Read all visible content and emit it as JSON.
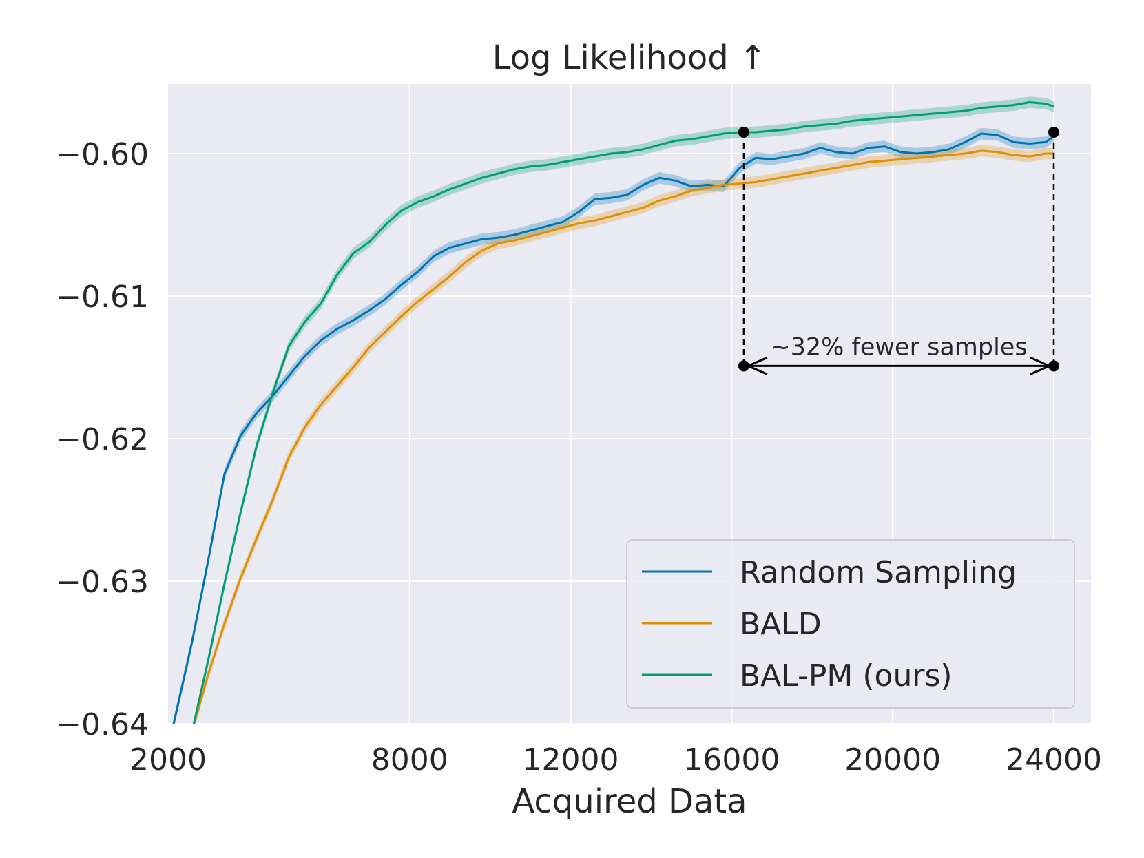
{
  "chart_data": {
    "type": "line",
    "title": "Log Likelihood ↑",
    "xlabel": "Acquired Data",
    "ylabel": "",
    "xlim": [
      2000,
      25000
    ],
    "ylim": [
      -0.64,
      -0.595
    ],
    "xticks": [
      2000,
      8000,
      12000,
      16000,
      20000,
      24000
    ],
    "xtick_labels": [
      "2000",
      "8000",
      "12000",
      "16000",
      "20000",
      "24000"
    ],
    "yticks": [
      -0.6,
      -0.61,
      -0.62,
      -0.63,
      -0.64
    ],
    "ytick_labels": [
      "−0.60",
      "−0.61",
      "−0.62",
      "−0.63",
      "−0.64"
    ],
    "grid": true,
    "legend_position": "lower-right",
    "series": [
      {
        "name": "Random Sampling",
        "color": "#0173b2",
        "x": [
          2100,
          2600,
          3000,
          3400,
          3800,
          4200,
          4600,
          5000,
          5400,
          5800,
          6200,
          6600,
          7000,
          7400,
          7800,
          8200,
          8600,
          9000,
          9400,
          9800,
          10200,
          10600,
          11000,
          11400,
          11800,
          12200,
          12600,
          13000,
          13400,
          13800,
          14200,
          14600,
          15000,
          15400,
          15800,
          16200,
          16600,
          17000,
          17400,
          17800,
          18200,
          18600,
          19000,
          19400,
          19800,
          20200,
          20600,
          21000,
          21400,
          21800,
          22200,
          22600,
          23000,
          23400,
          23800,
          24000
        ],
        "y": [
          -0.6405,
          -0.6342,
          -0.6285,
          -0.6225,
          -0.6198,
          -0.6182,
          -0.617,
          -0.6156,
          -0.6142,
          -0.6131,
          -0.6123,
          -0.6117,
          -0.611,
          -0.6102,
          -0.6092,
          -0.6083,
          -0.6072,
          -0.6066,
          -0.6063,
          -0.606,
          -0.6059,
          -0.6057,
          -0.6054,
          -0.6051,
          -0.6048,
          -0.6041,
          -0.6032,
          -0.6031,
          -0.6029,
          -0.6022,
          -0.6017,
          -0.6019,
          -0.6023,
          -0.6022,
          -0.6023,
          -0.601,
          -0.6003,
          -0.6004,
          -0.6002,
          -0.6,
          -0.5996,
          -0.5999,
          -0.6,
          -0.5996,
          -0.5995,
          -0.5999,
          -0.6,
          -0.5999,
          -0.5997,
          -0.5992,
          -0.5986,
          -0.5987,
          -0.5992,
          -0.5993,
          -0.5992,
          -0.5988
        ]
      },
      {
        "name": "BALD",
        "color": "#de8f05",
        "x": [
          2600,
          3000,
          3400,
          3800,
          4200,
          4600,
          5000,
          5400,
          5800,
          6200,
          6600,
          7000,
          7400,
          7800,
          8200,
          8600,
          9000,
          9400,
          9800,
          10200,
          10600,
          11000,
          11400,
          11800,
          12200,
          12600,
          13000,
          13400,
          13800,
          14200,
          14600,
          15000,
          15400,
          15800,
          16200,
          16600,
          17000,
          17400,
          17800,
          18200,
          18600,
          19000,
          19400,
          19800,
          20200,
          20600,
          21000,
          21400,
          21800,
          22200,
          22600,
          23000,
          23400,
          23800,
          24000
        ],
        "y": [
          -0.6405,
          -0.6365,
          -0.633,
          -0.6298,
          -0.627,
          -0.6243,
          -0.6213,
          -0.6192,
          -0.6176,
          -0.6163,
          -0.615,
          -0.6136,
          -0.6125,
          -0.6114,
          -0.6104,
          -0.6095,
          -0.6086,
          -0.6076,
          -0.6068,
          -0.6063,
          -0.6061,
          -0.6058,
          -0.6055,
          -0.6052,
          -0.6049,
          -0.6047,
          -0.6044,
          -0.6041,
          -0.6038,
          -0.6033,
          -0.603,
          -0.6026,
          -0.6024,
          -0.6022,
          -0.6021,
          -0.602,
          -0.6018,
          -0.6016,
          -0.6014,
          -0.6012,
          -0.601,
          -0.6008,
          -0.6006,
          -0.6005,
          -0.6004,
          -0.6003,
          -0.6002,
          -0.6001,
          -0.6,
          -0.5998,
          -0.5999,
          -0.6001,
          -0.6002,
          -0.6,
          -0.6
        ]
      },
      {
        "name": "BAL-PM (ours)",
        "color": "#029e73",
        "x": [
          2600,
          3000,
          3400,
          3800,
          4200,
          4600,
          5000,
          5400,
          5800,
          6200,
          6600,
          7000,
          7400,
          7800,
          8200,
          8600,
          9000,
          9400,
          9800,
          10200,
          10600,
          11000,
          11400,
          11800,
          12200,
          12600,
          13000,
          13400,
          13800,
          14200,
          14600,
          15000,
          15400,
          15800,
          16200,
          16600,
          17000,
          17400,
          17800,
          18200,
          18600,
          19000,
          19400,
          19800,
          20200,
          20600,
          21000,
          21400,
          21800,
          22200,
          22600,
          23000,
          23400,
          23800,
          24000
        ],
        "y": [
          -0.6405,
          -0.6355,
          -0.6302,
          -0.6252,
          -0.6205,
          -0.6168,
          -0.6135,
          -0.6118,
          -0.6105,
          -0.6085,
          -0.607,
          -0.6062,
          -0.605,
          -0.604,
          -0.6034,
          -0.603,
          -0.6025,
          -0.6021,
          -0.6017,
          -0.6014,
          -0.6011,
          -0.6009,
          -0.6008,
          -0.6006,
          -0.6004,
          -0.6002,
          -0.6,
          -0.5999,
          -0.5997,
          -0.5994,
          -0.5991,
          -0.599,
          -0.5988,
          -0.5986,
          -0.5985,
          -0.5985,
          -0.5984,
          -0.5983,
          -0.5981,
          -0.598,
          -0.5979,
          -0.5977,
          -0.5976,
          -0.5975,
          -0.5974,
          -0.5973,
          -0.5972,
          -0.5971,
          -0.597,
          -0.5968,
          -0.5967,
          -0.5966,
          -0.5964,
          -0.5965,
          -0.5967
        ]
      }
    ],
    "band_halfwidth": 0.0004,
    "annotation": {
      "text": "~32% fewer samples",
      "x_start": 16300,
      "x_end": 24000,
      "y_arrow": -0.6149,
      "y_top": -0.5985
    },
    "legend": {
      "entries": [
        "Random Sampling",
        "BALD",
        "BAL-PM (ours)"
      ]
    }
  }
}
